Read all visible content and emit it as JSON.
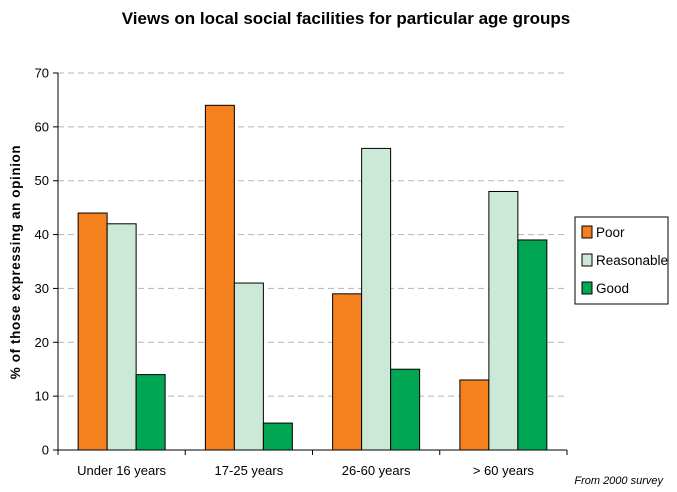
{
  "chart_data": {
    "type": "bar",
    "title": "Views on local social facilities for particular age groups",
    "xlabel": "",
    "ylabel": "% of those expressing an opinion",
    "categories": [
      "Under 16 years",
      "17-25 years",
      "26-60 years",
      "> 60 years"
    ],
    "series": [
      {
        "name": "Poor",
        "color": "#F5801E",
        "values": [
          44,
          64,
          29,
          13
        ]
      },
      {
        "name": "Reasonable",
        "color": "#CCE8D6",
        "values": [
          42,
          31,
          56,
          48
        ]
      },
      {
        "name": "Good",
        "color": "#00A651",
        "values": [
          14,
          5,
          15,
          39
        ]
      }
    ],
    "ylim": [
      0,
      70
    ],
    "yticks": [
      0,
      10,
      20,
      30,
      40,
      50,
      60,
      70
    ],
    "grid": "horizontal dashed",
    "legend_position": "right",
    "note": "From 2000 survey"
  }
}
